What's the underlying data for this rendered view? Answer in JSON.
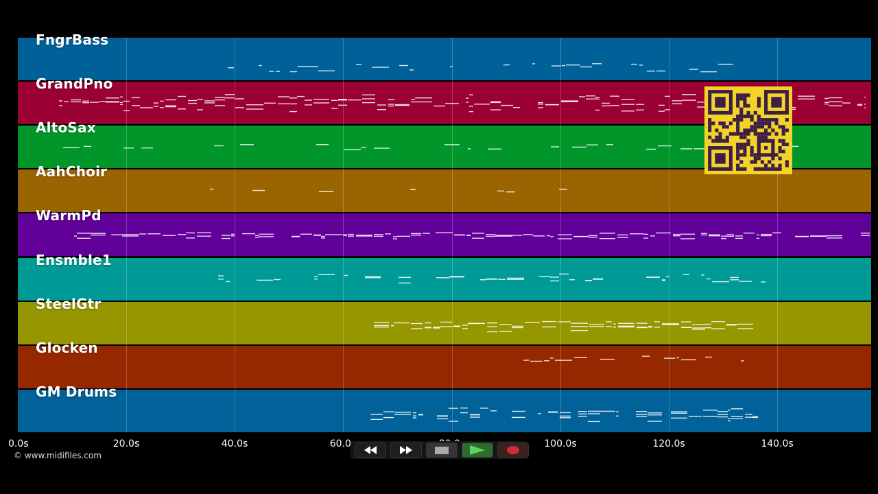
{
  "tracks": [
    {
      "label": "FngrBass",
      "color": "#006198"
    },
    {
      "label": "GrandPno",
      "color": "#9a0032"
    },
    {
      "label": "AltoSax",
      "color": "#00962a"
    },
    {
      "label": "AahChoir",
      "color": "#9a6400"
    },
    {
      "label": "WarmPd",
      "color": "#62009a"
    },
    {
      "label": "Ensmble1",
      "color": "#009a96"
    },
    {
      "label": "SteelGtr",
      "color": "#969600"
    },
    {
      "label": "Glocken",
      "color": "#962800"
    },
    {
      "label": "GM Drums",
      "color": "#006298"
    }
  ],
  "timeline": {
    "ticks": [
      "0.0s",
      "20.0s",
      "40.0s",
      "60.0s",
      "80.0s",
      "100.0s",
      "120.0s",
      "140.0s"
    ]
  },
  "copyright": "© www.midifiles.com",
  "transport": {
    "buttons": [
      {
        "name": "rewind-button",
        "icon": "rewind-icon"
      },
      {
        "name": "fast-forward-button",
        "icon": "fast-forward-icon"
      },
      {
        "name": "stop-button",
        "icon": "stop-icon"
      },
      {
        "name": "play-button",
        "icon": "play-icon"
      },
      {
        "name": "record-button",
        "icon": "record-icon"
      }
    ]
  },
  "overlay": {
    "icon": "qr-code-icon",
    "color": "#f3d32a"
  }
}
